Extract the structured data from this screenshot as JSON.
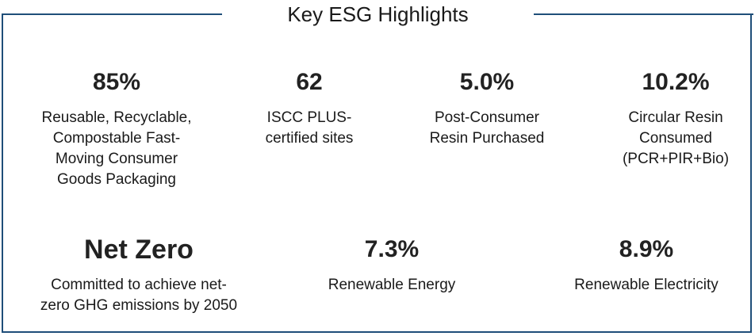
{
  "title": "Key ESG Highlights",
  "row1": [
    {
      "value": "85%",
      "label": "Reusable, Recyclable,\nCompostable Fast-\nMoving Consumer\nGoods Packaging"
    },
    {
      "value": "62",
      "label": "ISCC PLUS-\ncertified sites"
    },
    {
      "value": "5.0%",
      "label": "Post-Consumer\nResin Purchased"
    },
    {
      "value": "10.2%",
      "label": "Circular Resin\nConsumed\n(PCR+PIR+Bio)"
    }
  ],
  "row2": [
    {
      "value": "Net Zero",
      "label": "Committed to achieve net-\nzero GHG emissions by 2050"
    },
    {
      "value": "7.3%",
      "label": "Renewable Energy"
    },
    {
      "value": "8.9%",
      "label": "Renewable Electricity"
    }
  ],
  "colors": {
    "frame": "#1f4e79",
    "text": "#1a1a1a"
  }
}
